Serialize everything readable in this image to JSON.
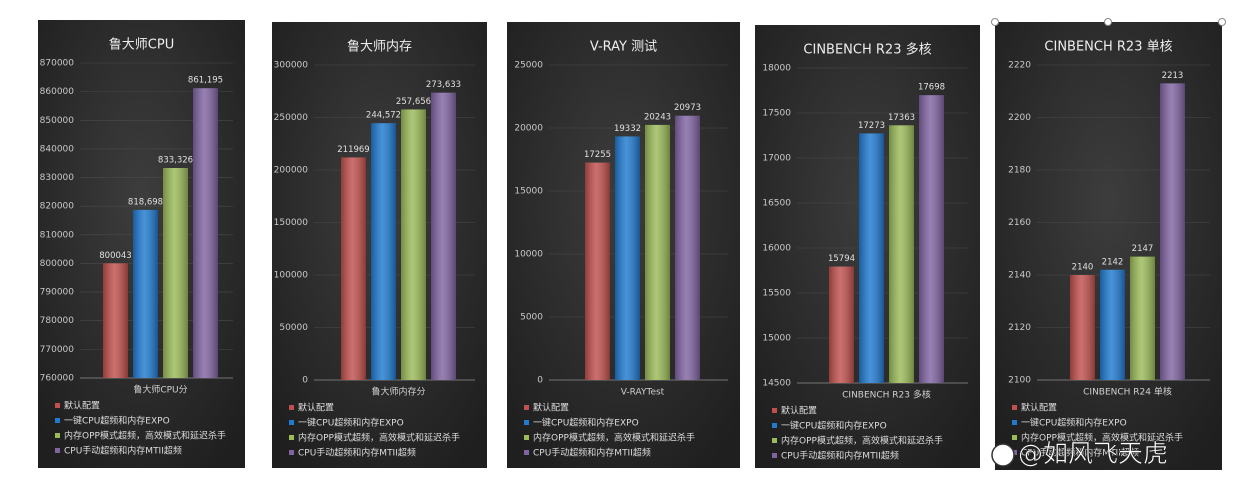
{
  "chart_data": [
    {
      "type": "bar",
      "title": "鲁大师CPU",
      "categories": [
        "鲁大师CPU分"
      ],
      "series": [
        {
          "name": "默认配置",
          "color": "#c0504d",
          "values": [
            800043
          ]
        },
        {
          "name": "一键CPU超频和内存EXPO",
          "color": "#1f7ad0",
          "values": [
            818698
          ],
          "value_labels": [
            "818,698"
          ]
        },
        {
          "name": "内存OPP模式超频，高效模式和延迟杀手",
          "color": "#9bbb59",
          "values": [
            833326
          ],
          "value_labels": [
            "833,326"
          ]
        },
        {
          "name": "CPU手动超频和内存MTII超频",
          "color": "#8064a2",
          "values": [
            861195
          ],
          "value_labels": [
            "861,195"
          ]
        }
      ],
      "ylim": [
        760000,
        870000
      ],
      "yticks": [
        760000,
        770000,
        780000,
        790000,
        800000,
        810000,
        820000,
        830000,
        840000,
        850000,
        860000,
        870000
      ],
      "grid": true
    },
    {
      "type": "bar",
      "title": "鲁大师内存",
      "categories": [
        "鲁大师内存分"
      ],
      "series": [
        {
          "name": "默认配置",
          "color": "#c0504d",
          "values": [
            211969
          ]
        },
        {
          "name": "一键CPU超频和内存EXPO",
          "color": "#1f7ad0",
          "values": [
            244572
          ],
          "value_labels": [
            "244,572"
          ]
        },
        {
          "name": "内存OPP模式超频，高效模式和延迟杀手",
          "color": "#9bbb59",
          "values": [
            257656
          ],
          "value_labels": [
            "257,656"
          ]
        },
        {
          "name": "CPU手动超频和内存MTII超频",
          "color": "#8064a2",
          "values": [
            273633
          ],
          "value_labels": [
            "273,633"
          ]
        }
      ],
      "ylim": [
        0,
        300000
      ],
      "yticks": [
        0,
        50000,
        100000,
        150000,
        200000,
        250000,
        300000
      ],
      "grid": true
    },
    {
      "type": "bar",
      "title": "V-RAY 测试",
      "categories": [
        "V-RAYTest"
      ],
      "series": [
        {
          "name": "默认配置",
          "color": "#c0504d",
          "values": [
            17255
          ]
        },
        {
          "name": "一键CPU超频和内存EXPO",
          "color": "#1f7ad0",
          "values": [
            19332
          ]
        },
        {
          "name": "内存OPP模式超频，高效模式和延迟杀手",
          "color": "#9bbb59",
          "values": [
            20243
          ]
        },
        {
          "name": "CPU手动超频和内存MTII超频",
          "color": "#8064a2",
          "values": [
            20973
          ]
        }
      ],
      "ylim": [
        0,
        25000
      ],
      "yticks": [
        0,
        5000,
        10000,
        15000,
        20000,
        25000
      ],
      "grid": true
    },
    {
      "type": "bar",
      "title": "CINBENCH R23 多核",
      "categories": [
        "CINBENCH R23 多核"
      ],
      "series": [
        {
          "name": "默认配置",
          "color": "#c0504d",
          "values": [
            15794
          ]
        },
        {
          "name": "一键CPU超频和内存EXPO",
          "color": "#1f7ad0",
          "values": [
            17273
          ]
        },
        {
          "name": "内存OPP模式超频，高效模式和延迟杀手",
          "color": "#9bbb59",
          "values": [
            17363
          ]
        },
        {
          "name": "CPU手动超频和内存MTII超频",
          "color": "#8064a2",
          "values": [
            17698
          ]
        }
      ],
      "ylim": [
        14500,
        18000
      ],
      "yticks": [
        14500,
        15000,
        15500,
        16000,
        16500,
        17000,
        17500,
        18000
      ],
      "grid": true
    },
    {
      "type": "bar",
      "title": "CINBENCH R23 单核",
      "categories": [
        "CINBENCH R24 单核"
      ],
      "series": [
        {
          "name": "默认配置",
          "color": "#c0504d",
          "values": [
            2140
          ]
        },
        {
          "name": "一键CPU超频和内存EXPO",
          "color": "#1f7ad0",
          "values": [
            2142
          ]
        },
        {
          "name": "内存OPP模式超频，高效模式和延迟杀手",
          "color": "#9bbb59",
          "values": [
            2147
          ]
        },
        {
          "name": "CPU手动超频和内存MTII超频",
          "color": "#8064a2",
          "values": [
            2213
          ]
        }
      ],
      "ylim": [
        2100,
        2220
      ],
      "yticks": [
        2100,
        2120,
        2140,
        2160,
        2180,
        2200,
        2220
      ],
      "grid": true
    }
  ],
  "watermark": "@如风飞天虎"
}
